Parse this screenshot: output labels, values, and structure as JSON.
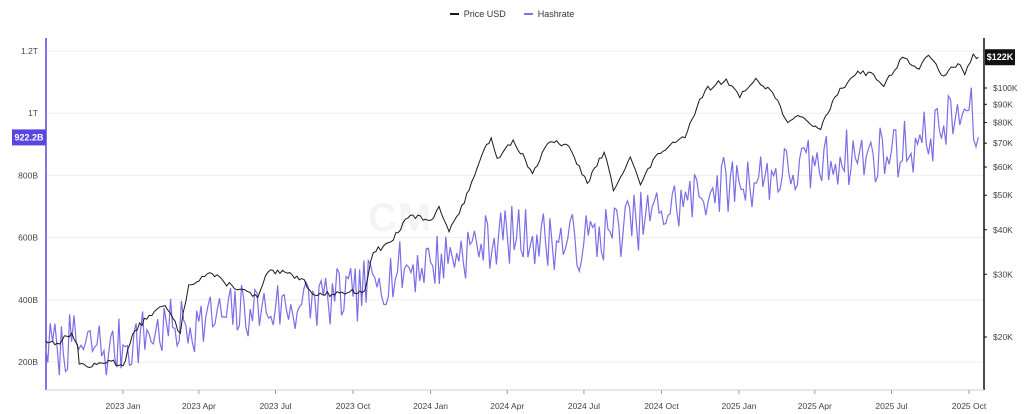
{
  "legend": {
    "price_label": "Price USD",
    "hashrate_label": "Hashrate"
  },
  "badges": {
    "price_current": "$122K",
    "hashrate_current": "922.2B"
  },
  "watermark": "CM",
  "colors": {
    "price": "#1a1a1a",
    "hashrate": "#7b6ee6",
    "badge_price": "#111111",
    "badge_hashrate": "#5a45e0",
    "grid": "#eeeeee"
  },
  "chart_data": {
    "type": "line",
    "x_axis": {
      "ticks": [
        "2023 Jan",
        "2023 Apr",
        "2023 Jul",
        "2023 Oct",
        "2024 Jan",
        "2024 Apr",
        "2024 Jul",
        "2024 Oct",
        "2025 Jan",
        "2025 Apr",
        "2025 Jul",
        "2025 Oct"
      ]
    },
    "left_axis": {
      "ticks": [
        "200B",
        "400B",
        "600B",
        "800B",
        "1T",
        "1.2T"
      ],
      "range": [
        150000000000.0,
        1250000000000.0
      ]
    },
    "right_axis": {
      "scale": "log",
      "ticks": [
        "$20K",
        "$30K",
        "$40K",
        "$50K",
        "$60K",
        "$70K",
        "$80K",
        "$90K",
        "$100K"
      ],
      "range": [
        15000,
        130000
      ]
    },
    "series": [
      {
        "name": "Price USD",
        "axis": "right",
        "points": [
          [
            "2022-10-01",
            19500
          ],
          [
            "2022-10-15",
            19200
          ],
          [
            "2022-11-01",
            20500
          ],
          [
            "2022-11-08",
            19000
          ],
          [
            "2022-11-10",
            16800
          ],
          [
            "2022-11-25",
            16500
          ],
          [
            "2022-12-15",
            17200
          ],
          [
            "2023-01-01",
            16600
          ],
          [
            "2023-01-15",
            20800
          ],
          [
            "2023-02-01",
            23000
          ],
          [
            "2023-02-20",
            24500
          ],
          [
            "2023-03-10",
            20500
          ],
          [
            "2023-03-20",
            28000
          ],
          [
            "2023-04-14",
            30300
          ],
          [
            "2023-05-01",
            28500
          ],
          [
            "2023-06-10",
            25800
          ],
          [
            "2023-06-22",
            30400
          ],
          [
            "2023-07-15",
            30200
          ],
          [
            "2023-08-01",
            29200
          ],
          [
            "2023-08-17",
            26200
          ],
          [
            "2023-09-15",
            26600
          ],
          [
            "2023-10-15",
            27000
          ],
          [
            "2023-10-25",
            34500
          ],
          [
            "2023-11-15",
            37000
          ],
          [
            "2023-12-08",
            43900
          ],
          [
            "2024-01-01",
            42500
          ],
          [
            "2024-01-11",
            46500
          ],
          [
            "2024-01-23",
            39500
          ],
          [
            "2024-02-10",
            47500
          ],
          [
            "2024-02-28",
            62000
          ],
          [
            "2024-03-13",
            72500
          ],
          [
            "2024-03-20",
            63500
          ],
          [
            "2024-04-08",
            71500
          ],
          [
            "2024-05-01",
            57500
          ],
          [
            "2024-05-21",
            70500
          ],
          [
            "2024-06-10",
            69500
          ],
          [
            "2024-07-05",
            54000
          ],
          [
            "2024-07-25",
            66000
          ],
          [
            "2024-08-05",
            51500
          ],
          [
            "2024-08-25",
            64000
          ],
          [
            "2024-09-06",
            53500
          ],
          [
            "2024-09-27",
            65500
          ],
          [
            "2024-10-29",
            72500
          ],
          [
            "2024-11-12",
            88000
          ],
          [
            "2024-11-22",
            98500
          ],
          [
            "2024-12-17",
            106000
          ],
          [
            "2025-01-02",
            94000
          ],
          [
            "2025-01-21",
            106500
          ],
          [
            "2025-02-10",
            97000
          ],
          [
            "2025-02-28",
            80000
          ],
          [
            "2025-03-15",
            83000
          ],
          [
            "2025-04-08",
            76500
          ],
          [
            "2025-04-25",
            94500
          ],
          [
            "2025-05-22",
            111500
          ],
          [
            "2025-06-10",
            109000
          ],
          [
            "2025-06-22",
            101000
          ],
          [
            "2025-07-14",
            122000
          ],
          [
            "2025-08-03",
            113000
          ],
          [
            "2025-08-14",
            123500
          ],
          [
            "2025-09-01",
            108000
          ],
          [
            "2025-09-18",
            117000
          ],
          [
            "2025-09-26",
            109000
          ],
          [
            "2025-10-06",
            124500
          ],
          [
            "2025-10-10",
            121000
          ],
          [
            "2025-10-12",
            122000
          ]
        ]
      },
      {
        "name": "Hashrate",
        "axis": "left",
        "points": [
          [
            "2022-10-01",
            250000000000.0
          ],
          [
            "2022-10-15",
            240000000000.0
          ],
          [
            "2022-11-01",
            265000000000.0
          ],
          [
            "2022-11-15",
            240000000000.0
          ],
          [
            "2022-12-01",
            255000000000.0
          ],
          [
            "2022-12-15",
            230000000000.0
          ],
          [
            "2023-01-01",
            255000000000.0
          ],
          [
            "2023-02-01",
            290000000000.0
          ],
          [
            "2023-03-01",
            310000000000.0
          ],
          [
            "2023-04-01",
            330000000000.0
          ],
          [
            "2023-05-01",
            345000000000.0
          ],
          [
            "2023-06-01",
            370000000000.0
          ],
          [
            "2023-07-01",
            375000000000.0
          ],
          [
            "2023-08-01",
            385000000000.0
          ],
          [
            "2023-09-01",
            405000000000.0
          ],
          [
            "2023-10-01",
            410000000000.0
          ],
          [
            "2023-11-01",
            470000000000.0
          ],
          [
            "2023-12-01",
            500000000000.0
          ],
          [
            "2024-01-01",
            520000000000.0
          ],
          [
            "2024-02-01",
            550000000000.0
          ],
          [
            "2024-03-01",
            580000000000.0
          ],
          [
            "2024-04-01",
            610000000000.0
          ],
          [
            "2024-05-01",
            605000000000.0
          ],
          [
            "2024-06-01",
            585000000000.0
          ],
          [
            "2024-07-01",
            585000000000.0
          ],
          [
            "2024-08-01",
            620000000000.0
          ],
          [
            "2024-09-01",
            650000000000.0
          ],
          [
            "2024-10-01",
            685000000000.0
          ],
          [
            "2024-11-01",
            720000000000.0
          ],
          [
            "2024-12-01",
            760000000000.0
          ],
          [
            "2025-01-01",
            780000000000.0
          ],
          [
            "2025-02-01",
            800000000000.0
          ],
          [
            "2025-03-01",
            810000000000.0
          ],
          [
            "2025-04-01",
            830000000000.0
          ],
          [
            "2025-05-01",
            860000000000.0
          ],
          [
            "2025-06-01",
            860000000000.0
          ],
          [
            "2025-07-01",
            880000000000.0
          ],
          [
            "2025-08-01",
            900000000000.0
          ],
          [
            "2025-09-01",
            960000000000.0
          ],
          [
            "2025-10-01",
            1010000000000.0
          ],
          [
            "2025-10-12",
            922200000000.0
          ]
        ]
      }
    ]
  }
}
